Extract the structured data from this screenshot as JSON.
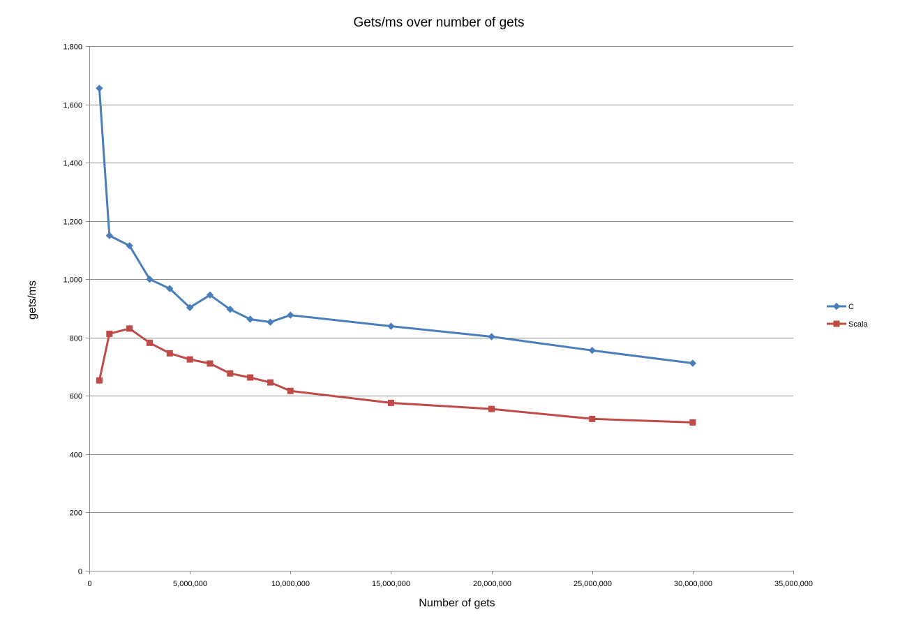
{
  "chart_data": {
    "type": "line",
    "title": "Gets/ms over number of gets",
    "xlabel": "Number of gets",
    "ylabel": "gets/ms",
    "xlim": [
      0,
      35000000
    ],
    "ylim": [
      0,
      1800
    ],
    "x_ticks": [
      0,
      5000000,
      10000000,
      15000000,
      20000000,
      25000000,
      30000000,
      35000000
    ],
    "x_tick_labels": [
      "0",
      "5,000,000",
      "10,000,000",
      "15,000,000",
      "20,000,000",
      "25,000,000",
      "30,000,000",
      "35,000,000"
    ],
    "y_ticks": [
      0,
      200,
      400,
      600,
      800,
      1000,
      1200,
      1400,
      1600,
      1800
    ],
    "y_tick_labels": [
      "0",
      "200",
      "400",
      "600",
      "800",
      "1,000",
      "1,200",
      "1,400",
      "1,600",
      "1,800"
    ],
    "grid": "horizontal",
    "legend_position": "right",
    "x": [
      500000,
      1000000,
      2000000,
      3000000,
      4000000,
      5000000,
      6000000,
      7000000,
      8000000,
      9000000,
      10000000,
      15000000,
      20000000,
      25000000,
      30000000
    ],
    "series": [
      {
        "name": "C",
        "color": "#4a7ebb",
        "marker": "diamond",
        "values": [
          1655,
          1150,
          1115,
          1000,
          968,
          903,
          946,
          897,
          863,
          853,
          877,
          839,
          803,
          756,
          712
        ]
      },
      {
        "name": "Scala",
        "color": "#be4b48",
        "marker": "square",
        "values": [
          653,
          813,
          831,
          782,
          746,
          725,
          711,
          677,
          663,
          646,
          617,
          576,
          555,
          521,
          509
        ]
      }
    ]
  }
}
